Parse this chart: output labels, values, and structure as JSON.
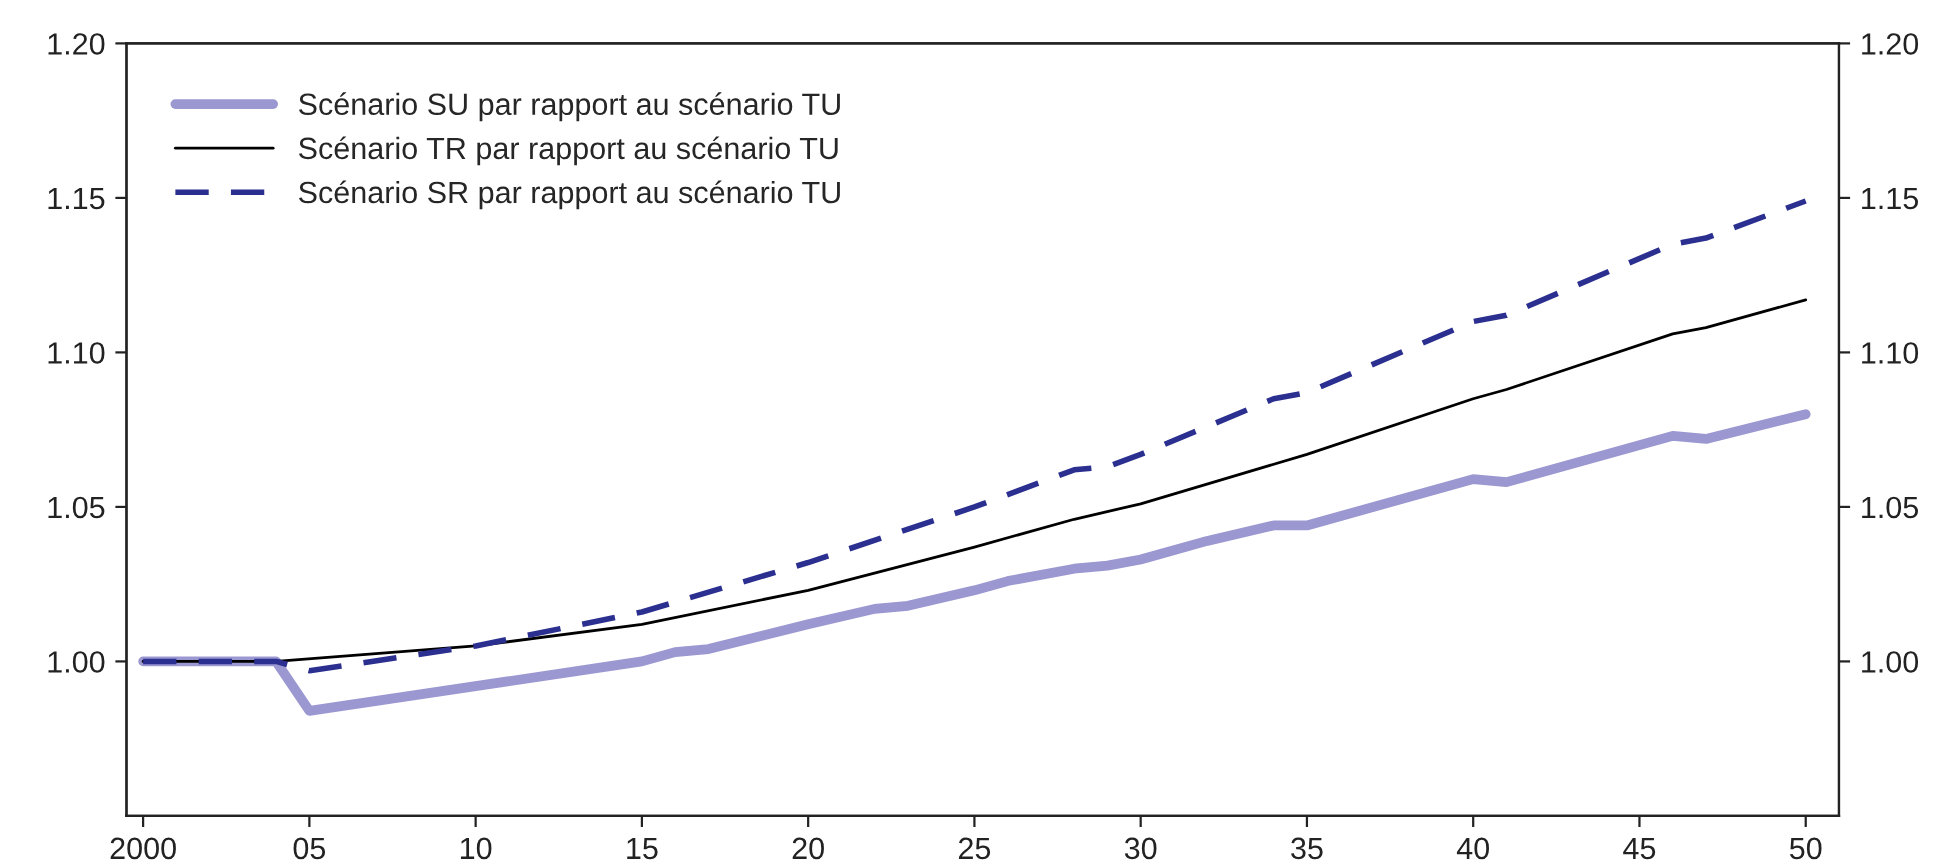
{
  "chart_data": {
    "type": "line",
    "xlim": [
      1999.5,
      2051
    ],
    "ylim": [
      0.95,
      1.2
    ],
    "xticks": [
      {
        "value": 2000,
        "label": "2000"
      },
      {
        "value": 2005,
        "label": "05"
      },
      {
        "value": 2010,
        "label": "10"
      },
      {
        "value": 2015,
        "label": "15"
      },
      {
        "value": 2020,
        "label": "20"
      },
      {
        "value": 2025,
        "label": "25"
      },
      {
        "value": 2030,
        "label": "30"
      },
      {
        "value": 2035,
        "label": "35"
      },
      {
        "value": 2040,
        "label": "40"
      },
      {
        "value": 2045,
        "label": "45"
      },
      {
        "value": 2050,
        "label": "50"
      }
    ],
    "yticks": [
      {
        "value": 1.0,
        "label": "1.00"
      },
      {
        "value": 1.05,
        "label": "1.05"
      },
      {
        "value": 1.1,
        "label": "1.10"
      },
      {
        "value": 1.15,
        "label": "1.15"
      },
      {
        "value": 1.2,
        "label": "1.20"
      }
    ],
    "y2lim": [
      0.95,
      1.2
    ],
    "y2ticks": [
      {
        "value": 1.0,
        "label": "1.00"
      },
      {
        "value": 1.05,
        "label": "1.05"
      },
      {
        "value": 1.1,
        "label": "1.10"
      },
      {
        "value": 1.15,
        "label": "1.15"
      },
      {
        "value": 1.2,
        "label": "1.20"
      }
    ],
    "grid": false,
    "legend": "top left",
    "series": [
      {
        "name": "Scénario SU par rapport au scénario TU",
        "color": "#9b97d1",
        "line_style": "solid",
        "x": [
          2000,
          2004,
          2005,
          2010,
          2015,
          2016,
          2017,
          2020,
          2022,
          2023,
          2025,
          2026,
          2028,
          2029,
          2030,
          2032,
          2034,
          2035,
          2040,
          2041,
          2046,
          2047,
          2050
        ],
        "values": [
          1.0,
          1.0,
          0.984,
          0.992,
          1.0,
          1.003,
          1.004,
          1.012,
          1.017,
          1.018,
          1.023,
          1.026,
          1.03,
          1.031,
          1.033,
          1.039,
          1.044,
          1.044,
          1.059,
          1.058,
          1.073,
          1.072,
          1.08
        ]
      },
      {
        "name": "Scénario TR par rapport au scénario TU",
        "color": "#000000",
        "line_style": "solid",
        "x": [
          2000,
          2004,
          2010,
          2015,
          2020,
          2025,
          2028,
          2030,
          2035,
          2040,
          2041,
          2046,
          2047,
          2050
        ],
        "values": [
          1.0,
          1.0,
          1.005,
          1.012,
          1.023,
          1.037,
          1.046,
          1.051,
          1.067,
          1.085,
          1.088,
          1.106,
          1.108,
          1.117
        ]
      },
      {
        "name": "Scénario SR par rapport au scénario TU",
        "color": "#2b2f8f",
        "line_style": "dashed",
        "x": [
          2000,
          2004,
          2005,
          2010,
          2015,
          2020,
          2025,
          2028,
          2029,
          2030,
          2034,
          2035,
          2040,
          2041,
          2046,
          2047,
          2050
        ],
        "values": [
          1.0,
          1.0,
          0.997,
          1.005,
          1.016,
          1.032,
          1.05,
          1.062,
          1.063,
          1.067,
          1.085,
          1.087,
          1.11,
          1.112,
          1.135,
          1.137,
          1.149
        ]
      }
    ]
  }
}
